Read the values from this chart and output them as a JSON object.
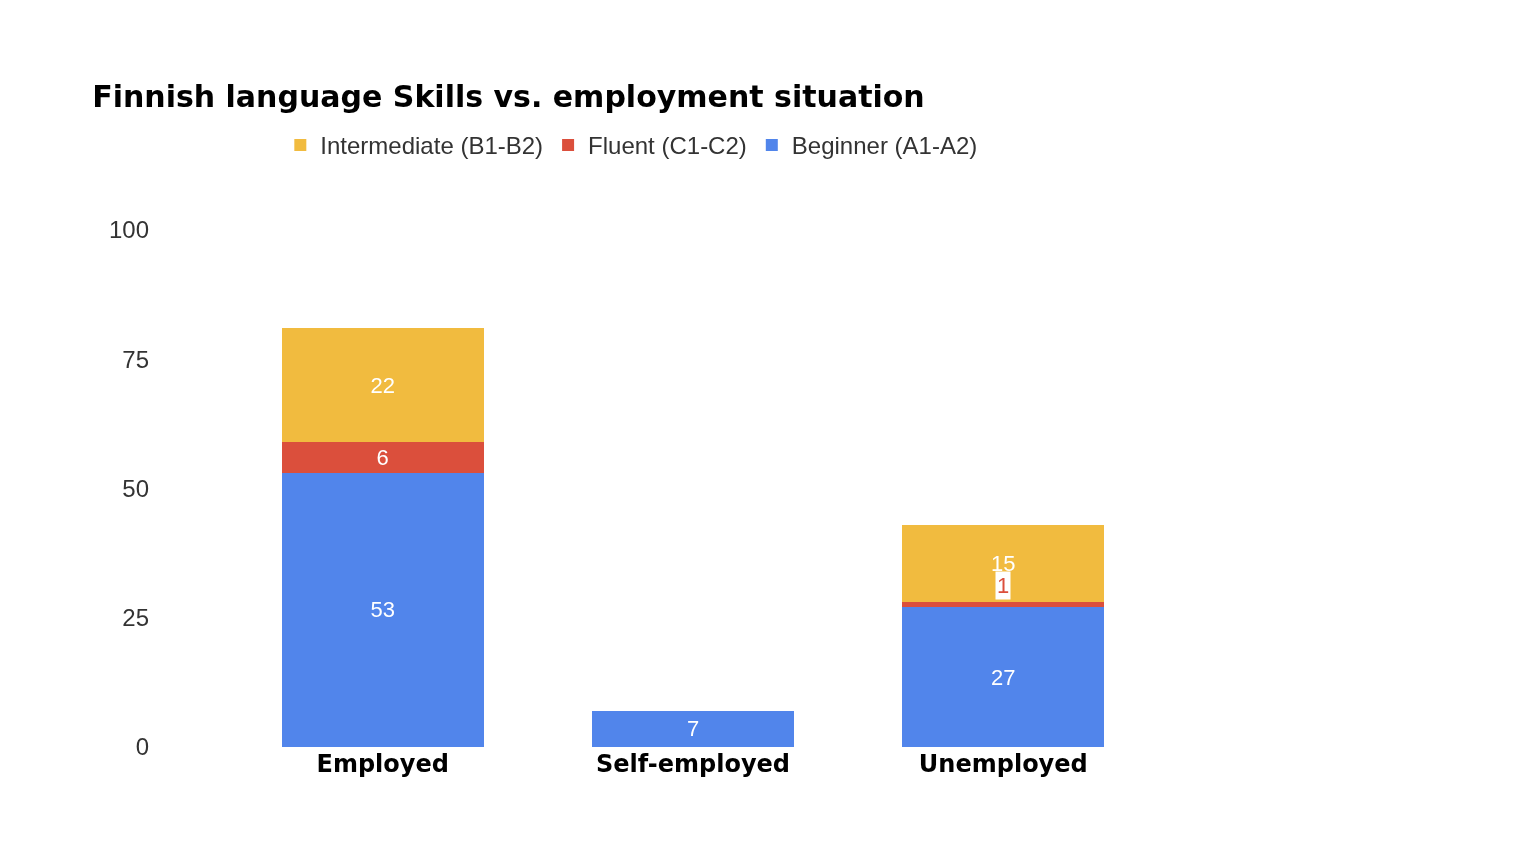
{
  "chart_data": {
    "type": "bar",
    "title": "Finnish language Skills vs. employment situation",
    "categories": [
      "Employed",
      "Self-employed",
      "Unemployed"
    ],
    "stacked": true,
    "series": [
      {
        "name": "Beginner (A1-A2)",
        "color": "#5185eb",
        "values": [
          53,
          7,
          27
        ]
      },
      {
        "name": "Fluent (C1-C2)",
        "color": "#db4f3c",
        "values": [
          6,
          null,
          1
        ]
      },
      {
        "name": "Intermediate (B1-B2)",
        "color": "#f1bb3f",
        "values": [
          22,
          null,
          15
        ]
      }
    ],
    "ylim": [
      0,
      100
    ],
    "yticks": [
      0,
      25,
      50,
      75,
      100
    ],
    "legend": "top",
    "data_labels": true
  }
}
